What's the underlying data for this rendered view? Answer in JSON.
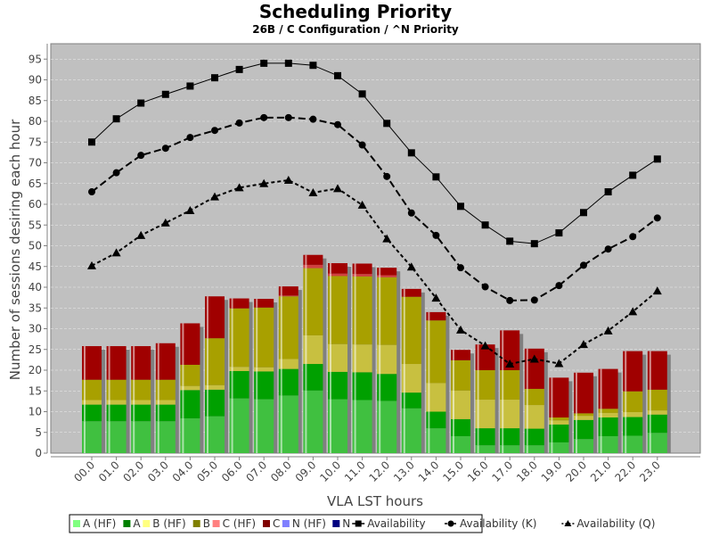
{
  "chart_data": {
    "type": "bar",
    "title": "Scheduling Priority",
    "subtitle": "26B / C Configuration / ^N Priority",
    "xlabel": "VLA LST hours",
    "ylabel": "Number of sessions desiring each hour",
    "ylim": [
      0,
      98
    ],
    "yticks": [
      0,
      5,
      10,
      15,
      20,
      25,
      30,
      35,
      40,
      45,
      50,
      55,
      60,
      65,
      70,
      75,
      80,
      85,
      90,
      95
    ],
    "grid": true,
    "legend_position": "bottom",
    "stacked": true,
    "categories": [
      "00.0",
      "01.0",
      "02.0",
      "03.0",
      "04.0",
      "05.0",
      "06.0",
      "07.0",
      "08.0",
      "09.0",
      "10.0",
      "11.0",
      "12.0",
      "13.0",
      "14.0",
      "15.0",
      "16.0",
      "17.0",
      "18.0",
      "19.0",
      "20.0",
      "21.0",
      "22.0",
      "23.0"
    ],
    "series": [
      {
        "name": "A (HF)",
        "color": "#80ff80",
        "bar_color": "#40c040",
        "values": [
          7.7,
          7.7,
          7.7,
          7.7,
          8.4,
          8.9,
          13.2,
          13.0,
          13.9,
          15.1,
          13.0,
          12.8,
          12.6,
          10.8,
          6.0,
          4.1,
          1.9,
          1.9,
          1.9,
          2.6,
          3.4,
          4.1,
          4.2,
          4.9
        ]
      },
      {
        "name": "A",
        "color": "#008000",
        "bar_color": "#00a000",
        "values": [
          4.0,
          4.0,
          4.0,
          4.0,
          6.8,
          6.4,
          6.6,
          6.7,
          6.4,
          6.4,
          6.6,
          6.7,
          6.5,
          3.8,
          4.0,
          4.1,
          4.1,
          4.1,
          4.0,
          4.3,
          4.6,
          4.5,
          4.5,
          4.4
        ]
      },
      {
        "name": "B (HF)",
        "color": "#ffff80",
        "bar_color": "#c8c040",
        "values": [
          1.1,
          1.1,
          1.1,
          1.1,
          1.0,
          1.1,
          1.0,
          1.0,
          2.4,
          6.9,
          6.7,
          6.7,
          7.0,
          6.9,
          6.9,
          6.9,
          6.9,
          6.9,
          5.7,
          1.0,
          1.0,
          1.1,
          1.2,
          1.0
        ]
      },
      {
        "name": "B",
        "color": "#808000",
        "bar_color": "#a8a000",
        "values": [
          4.9,
          4.9,
          4.9,
          4.9,
          5.1,
          11.3,
          14.1,
          14.4,
          15.1,
          16.2,
          16.4,
          16.4,
          16.3,
          16.2,
          15.1,
          7.3,
          7.1,
          7.1,
          3.9,
          0.7,
          0.6,
          1.0,
          5.0,
          5.0
        ]
      },
      {
        "name": "C (HF)",
        "color": "#ff8080",
        "bar_color": "#d04040",
        "values": [
          0,
          0,
          0,
          0,
          0,
          0,
          0,
          0,
          0.2,
          0.8,
          0.6,
          0.6,
          0.5,
          0,
          0,
          0,
          0,
          0,
          0,
          0,
          0,
          0,
          0,
          0
        ]
      },
      {
        "name": "C",
        "color": "#800000",
        "bar_color": "#a00000",
        "values": [
          8.1,
          8.1,
          8.1,
          8.8,
          10.0,
          10.1,
          2.4,
          2.1,
          2.2,
          2.4,
          2.5,
          2.5,
          1.8,
          1.9,
          2.0,
          2.5,
          6.2,
          9.6,
          9.7,
          9.6,
          9.8,
          9.6,
          9.7,
          9.3
        ]
      },
      {
        "name": "N (HF)",
        "color": "#8080ff",
        "bar_color": "#8080ff",
        "values": [
          0,
          0,
          0,
          0,
          0,
          0,
          0,
          0,
          0,
          0,
          0,
          0,
          0,
          0,
          0,
          0,
          0,
          0,
          0,
          0,
          0,
          0,
          0,
          0
        ]
      },
      {
        "name": "N",
        "color": "#000080",
        "bar_color": "#000080",
        "values": [
          0,
          0,
          0,
          0,
          0,
          0,
          0,
          0,
          0,
          0,
          0,
          0,
          0,
          0,
          0,
          0,
          0,
          0,
          0,
          0,
          0,
          0,
          0,
          0
        ]
      }
    ],
    "lines": [
      {
        "name": "Availability",
        "marker": "square",
        "dash": "solid",
        "values": [
          75,
          80.6,
          84.4,
          86.5,
          88.5,
          90.5,
          92.5,
          94,
          94,
          93.5,
          91,
          86.6,
          79.5,
          72.4,
          66.6,
          59.5,
          55,
          51.1,
          50.5,
          53.1,
          58,
          63,
          67,
          70.9
        ]
      },
      {
        "name": "Availability (K)",
        "marker": "circle",
        "dash": "dashed",
        "values": [
          63,
          67.6,
          71.8,
          73.5,
          76.1,
          77.8,
          79.6,
          80.9,
          80.9,
          80.5,
          79.2,
          74.3,
          66.7,
          57.9,
          52.5,
          44.7,
          40.1,
          36.8,
          36.9,
          40.4,
          45.3,
          49.2,
          52.2,
          56.7
        ]
      },
      {
        "name": "Availability (Q)",
        "marker": "triangle",
        "dash": "dotted",
        "values": [
          45.2,
          48.3,
          52.5,
          55.5,
          58.5,
          61.8,
          64,
          65,
          65.8,
          62.8,
          63.8,
          59.8,
          51.7,
          44.9,
          37.4,
          29.7,
          25.9,
          21.5,
          22.7,
          21.6,
          26.2,
          29.5,
          34.1,
          39.1
        ]
      }
    ]
  }
}
